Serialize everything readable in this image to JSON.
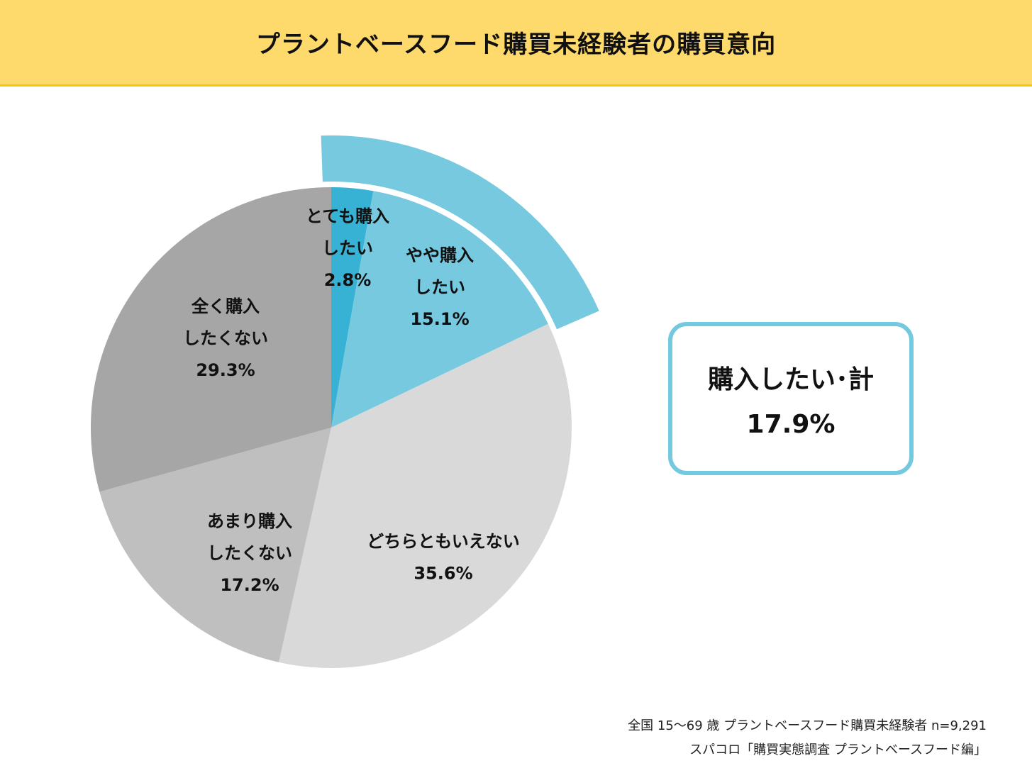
{
  "title": "プラントベースフード購買未経験者の購買意向",
  "chart_data": {
    "type": "pie",
    "start_angle_deg": 0,
    "direction": "clockwise",
    "slices": [
      {
        "label_lines": [
          "とても購入",
          "したい"
        ],
        "value": 2.8,
        "value_label": "2.8%",
        "color": "#38b2d4"
      },
      {
        "label_lines": [
          "やや購入",
          "したい"
        ],
        "value": 15.1,
        "value_label": "15.1%",
        "color": "#76c9df"
      },
      {
        "label_lines": [
          "どちらともいえない"
        ],
        "value": 35.6,
        "value_label": "35.6%",
        "color": "#d9d9d9"
      },
      {
        "label_lines": [
          "あまり購入",
          "したくない"
        ],
        "value": 17.2,
        "value_label": "17.2%",
        "color": "#bfbfbf"
      },
      {
        "label_lines": [
          "全く購入",
          "したくない"
        ],
        "value": 29.3,
        "value_label": "29.3%",
        "color": "#a6a6a6"
      }
    ],
    "highlight": {
      "covers_slices": [
        0,
        1
      ],
      "color": "#76c9df"
    }
  },
  "summary": {
    "label": "購入したい･計",
    "value": "17.9%"
  },
  "footnotes": [
    "全国 15～69 歳 プラントベースフード購買未経験者 n=9,291",
    "スパコロ「購買実態調査 プラントベースフード編」"
  ]
}
